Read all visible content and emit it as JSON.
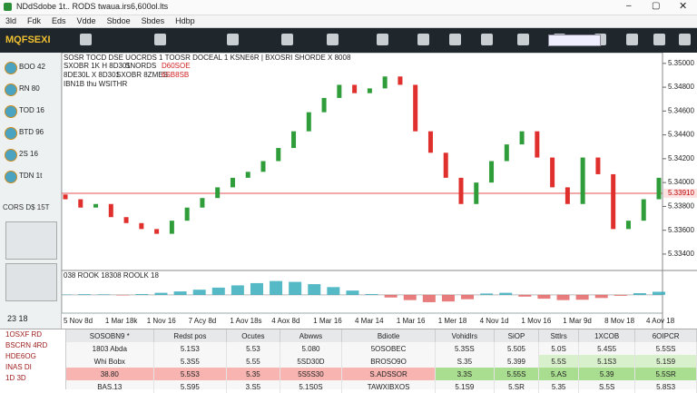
{
  "window": {
    "title": "NDdSdobe 1t.. RODS twaua.irs6,600ol.lts"
  },
  "menu": [
    "3ld",
    "Fdk",
    "Eds",
    "Vdde",
    "Sbdoe",
    "Sbdes",
    "Hdbp"
  ],
  "toolbar": {
    "logo": "MQFSEXI"
  },
  "sidebar": {
    "items": [
      "BOO 42",
      "RN 80",
      "TOD 16",
      "BTD 96",
      "2S 16",
      "TDN 1t"
    ],
    "section": "CORS D$ 15T",
    "bottom": "23 18"
  },
  "chart_data": {
    "type": "candlestick",
    "header": [
      "SOSR TOCD DSE UOCRDS 1 TOOSR DOCEAL 1 KSNE6R | BXOSRI SHORDE X 8008",
      "SXOBR 1K H 8D301",
      "SNORDS",
      "D60SOE",
      "8DE30L X 8D301",
      "SXOBR 8ZMES",
      "6SB8SB",
      "IBN1B thu WSITHR"
    ],
    "open": [
      5.339,
      5.3386,
      5.3379,
      5.3382,
      5.3371,
      5.3366,
      5.3361,
      5.3357,
      5.3368,
      5.3379,
      5.3387,
      5.3396,
      5.3404,
      5.3409,
      5.3418,
      5.3429,
      5.3443,
      5.3459,
      5.3471,
      5.3482,
      5.3475,
      5.3479,
      5.3489,
      5.3482,
      5.3443,
      5.3425,
      5.3404,
      5.3382,
      5.34,
      5.3418,
      5.3432,
      5.3443,
      5.3421,
      5.3396,
      5.3382,
      5.3421,
      5.3407,
      5.3361,
      5.3368,
      5.3386
    ],
    "close": [
      5.3386,
      5.3379,
      5.3382,
      5.3371,
      5.3366,
      5.3361,
      5.3357,
      5.3368,
      5.3379,
      5.3387,
      5.3396,
      5.3404,
      5.3409,
      5.3418,
      5.3429,
      5.3443,
      5.3459,
      5.3471,
      5.3482,
      5.3475,
      5.3479,
      5.3489,
      5.3482,
      5.3443,
      5.3425,
      5.3404,
      5.3382,
      5.34,
      5.3418,
      5.3432,
      5.3443,
      5.3421,
      5.3396,
      5.3382,
      5.3421,
      5.3407,
      5.3361,
      5.3368,
      5.3386,
      5.3404
    ],
    "up_color": "#2f9e3a",
    "down_color": "#e0302d",
    "ylim": [
      5.3327,
      5.3509
    ],
    "yticks": [
      {
        "value": 5.35,
        "label": "5.35000"
      },
      {
        "value": 5.348,
        "label": "5.34800"
      },
      {
        "value": 5.346,
        "label": "5.34600"
      },
      {
        "value": 5.344,
        "label": "5.34400"
      },
      {
        "value": 5.342,
        "label": "5.34200"
      },
      {
        "value": 5.34,
        "label": "5.34000"
      },
      {
        "value": 5.338,
        "label": "5.33800"
      },
      {
        "value": 5.336,
        "label": "5.33600"
      },
      {
        "value": 5.334,
        "label": "5.33400"
      }
    ],
    "current": {
      "value": 5.3391,
      "label": "5.33910"
    },
    "x_labels": [
      "5 Nov 8d",
      "1 Mar 18k",
      "1 Nov 16",
      "7 Acy 8d",
      "1 Aov 18s",
      "4 Aox 8d",
      "1 Mar 16",
      "4 Mar 14",
      "1 Mar 16",
      "1 Mer 18",
      "4 Nov 1d",
      "1 Mov 16",
      "1 Mar 9d",
      "8 Mov 18",
      "4 Aov 18"
    ],
    "oscillator": {
      "title": "038 ROOK 18308 ROOLK 18",
      "values": [
        0.02,
        0.04,
        0.03,
        -0.03,
        0.05,
        0.12,
        0.2,
        0.3,
        0.42,
        0.55,
        0.68,
        0.8,
        0.75,
        0.62,
        0.45,
        0.25,
        0.05,
        -0.15,
        -0.3,
        -0.42,
        -0.38,
        -0.25,
        0.08,
        0.12,
        -0.1,
        -0.22,
        -0.3,
        -0.28,
        -0.18,
        -0.05,
        0.1,
        0.18
      ],
      "ylim": [
        -1,
        1.2
      ],
      "up_color": "#2aa7b8",
      "down_color": "#e25a5a"
    }
  },
  "table": {
    "tree": [
      "1OSXF RD",
      "BSCRN 4RD",
      "HDE6OG",
      "INAS DI",
      "1D 3D"
    ],
    "header": [
      "SOSOBN9 *",
      "Redst pos",
      "Ocutes",
      "Abwws",
      "Bdiotle",
      "Vohidlrs",
      "SiOP",
      "Sttlrs",
      "1XCOB",
      "6OIPCR"
    ],
    "rows": [
      [
        "1803 Abda",
        "5.1S3",
        "5.53",
        "5.080",
        "5OSOBEC",
        "5.3SS",
        "5.505",
        "5.0S",
        "5.4S5",
        "5.5SS"
      ],
      [
        "Whi Bobx",
        "5.3S5",
        "5.55",
        "5SD30D",
        "BROSO9O",
        "S.35",
        "5.399",
        "5.5S",
        "5.1S3",
        "5.1S9"
      ],
      [
        "38.80",
        "5.5S3",
        "5.35",
        "5S5S30",
        "S.ADSSOR",
        "3.3S",
        "5.55S",
        "5.AS",
        "5.39",
        "5.5SR"
      ],
      [
        "BAS.13",
        "5.S95",
        "3.S5",
        "5.1S0S",
        "TAWXIBXOS",
        "5.1S9",
        "5.SR",
        "5.35",
        "S.5S",
        "5.8S3"
      ]
    ]
  }
}
